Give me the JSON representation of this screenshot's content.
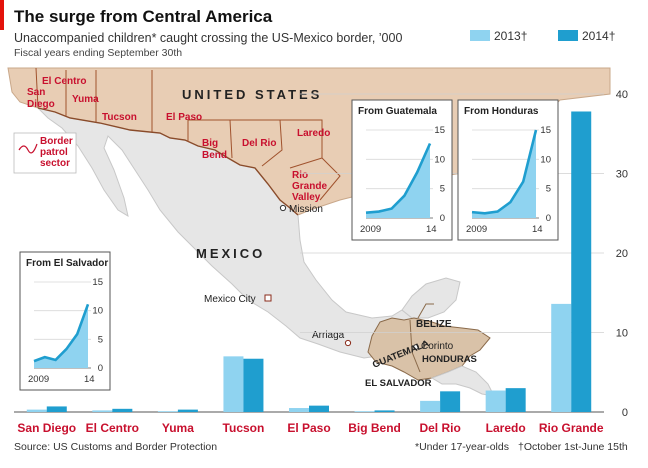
{
  "header": {
    "title": "The surge from Central America",
    "subtitle": "Unaccompanied children* caught crossing the US-Mexico border, ’000",
    "note": "Fiscal years ending September 30th"
  },
  "legend": {
    "label_2013": "2013†",
    "label_2014": "2014†"
  },
  "colors": {
    "c2013": "#8fd3f0",
    "c2014": "#1f9ecf",
    "us_land": "#e8cdb4",
    "central_america": "#d9c2a8",
    "mexico_land": "#e6e6e6",
    "sea": "#ffffff",
    "accent": "#c8102e",
    "border": "#8a4b2a"
  },
  "map": {
    "us_label": "UNITED STATES",
    "mexico_label": "MEXICO",
    "legend_box_label": "Border patrol sector",
    "mexico_city": "Mexico City",
    "mission": "Mission",
    "arriaga": "Arriaga",
    "corinto": "Corinto",
    "belize": "BELIZE",
    "guatemala": "GUATEMALA",
    "honduras": "HONDURAS",
    "el_salvador": "EL SALVADOR",
    "sector_labels": {
      "san_diego": "San Diego",
      "el_centro": "El Centro",
      "yuma": "Yuma",
      "tucson": "Tucson",
      "el_paso": "El Paso",
      "big_bend": "Big Bend",
      "del_rio": "Del Rio",
      "laredo": "Laredo",
      "rio_grande": "Rio Grande Valley"
    }
  },
  "source": "Source: US Customs and Border Protection",
  "footnote_1": "*Under 17-year-olds",
  "footnote_2": "†October 1st-June 15th",
  "chart_data": [
    {
      "type": "bar",
      "categories": [
        "San Diego",
        "El Centro",
        "Yuma",
        "Tucson",
        "El Paso",
        "Big Bend",
        "Del Rio",
        "Laredo",
        "Rio Grande"
      ],
      "series": [
        {
          "name": "2013†",
          "values": [
            0.3,
            0.2,
            0.1,
            7.0,
            0.5,
            0.1,
            1.4,
            2.7,
            13.6
          ]
        },
        {
          "name": "2014†",
          "values": [
            0.7,
            0.4,
            0.3,
            6.7,
            0.8,
            0.2,
            2.6,
            3.0,
            37.8
          ]
        }
      ],
      "ylim": [
        0,
        40
      ],
      "yticks": [
        0,
        10,
        20,
        30,
        40
      ],
      "grid": true
    },
    {
      "type": "area",
      "title": "From Guatemala",
      "x": [
        2009,
        2010,
        2011,
        2012,
        2013,
        2014
      ],
      "values": [
        0.9,
        1.1,
        1.6,
        3.8,
        7.8,
        12.7
      ],
      "ylim": [
        0,
        15
      ],
      "yticks": [
        0,
        5,
        10,
        15
      ],
      "xticks": [
        "2009",
        "14"
      ]
    },
    {
      "type": "area",
      "title": "From Honduras",
      "x": [
        2009,
        2010,
        2011,
        2012,
        2013,
        2014
      ],
      "values": [
        1.0,
        0.8,
        1.1,
        2.7,
        6.2,
        15.0
      ],
      "ylim": [
        0,
        15
      ],
      "yticks": [
        0,
        5,
        10,
        15
      ],
      "xticks": [
        "2009",
        "14"
      ]
    },
    {
      "type": "area",
      "title": "From El Salvador",
      "x": [
        2009,
        2010,
        2011,
        2012,
        2013,
        2014
      ],
      "values": [
        1.2,
        1.9,
        1.4,
        3.3,
        5.9,
        11.1
      ],
      "ylim": [
        0,
        15
      ],
      "yticks": [
        0,
        5,
        10,
        15
      ],
      "xticks": [
        "2009",
        "14"
      ]
    }
  ]
}
